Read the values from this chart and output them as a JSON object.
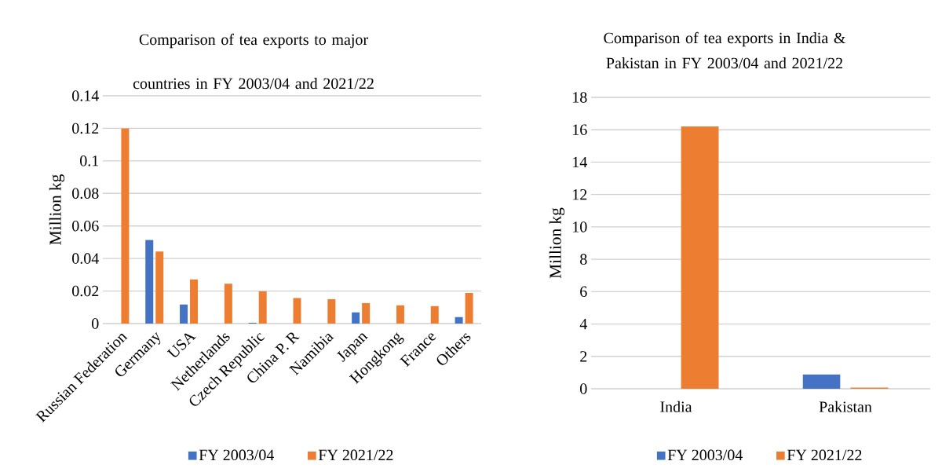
{
  "chart_data": [
    {
      "type": "bar",
      "title": "Comparison of tea exports to major countries in  FY 2003/04 and 2021/22",
      "ylabel": "Million kg",
      "categories": [
        "Russian Federation",
        "Germany",
        "USA",
        "Netherlands",
        "Czech Republic",
        "China P. R",
        "Namibia",
        "Japan",
        "Hongkong",
        "France",
        "Others"
      ],
      "series": [
        {
          "name": "FY 2003/04",
          "color": "#4472c4",
          "values": [
            null,
            0.0514,
            0.0117,
            null,
            0.0005,
            null,
            null,
            0.0069,
            null,
            null,
            0.004
          ]
        },
        {
          "name": "FY 2021/22",
          "color": "#ed7d31",
          "values": [
            0.12,
            0.0443,
            0.0272,
            0.0245,
            0.0198,
            0.0157,
            0.015,
            0.0126,
            0.0112,
            0.0107,
            0.0188
          ]
        }
      ],
      "ylim": [
        0,
        0.14
      ],
      "yticks": [
        0,
        0.02,
        0.04,
        0.06,
        0.08,
        0.1,
        0.12,
        0.14
      ],
      "grid": "y",
      "legend": "bottom"
    },
    {
      "type": "bar",
      "title": "Comparison of tea exports in India & Pakistan in FY 2003/04 and 2021/22",
      "ylabel": "Million kg",
      "categories": [
        "India",
        "Pakistan"
      ],
      "series": [
        {
          "name": "FY 2003/04",
          "color": "#4472c4",
          "values": [
            null,
            0.89
          ]
        },
        {
          "name": "FY 2021/22",
          "color": "#ed7d31",
          "values": [
            16.2,
            0.07
          ]
        }
      ],
      "ylim": [
        0,
        18
      ],
      "yticks": [
        0,
        2,
        4,
        6,
        8,
        10,
        12,
        14,
        16,
        18
      ],
      "grid": "y",
      "legend": "bottom"
    }
  ]
}
